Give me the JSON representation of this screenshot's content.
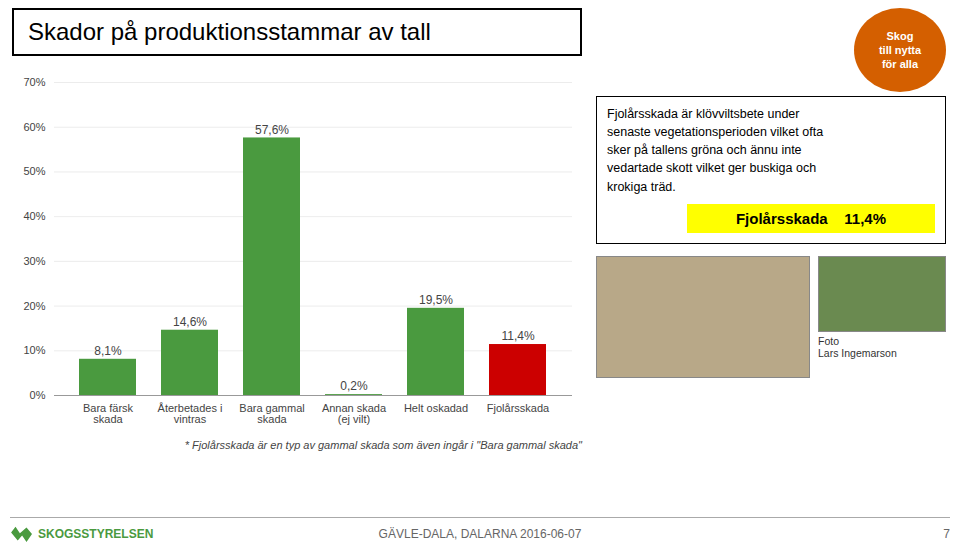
{
  "chart_data": {
    "type": "bar",
    "title": "Skador på produktionsstammar av tall",
    "categories": [
      "Bara färsk\nskada",
      "Återbetades i\nvintras",
      "Bara gammal\nskada",
      "Annan skada\n(ej vilt)",
      "Helt oskadad",
      "Fjolårsskada"
    ],
    "values": [
      8.1,
      14.6,
      57.6,
      0.2,
      19.5,
      11.4
    ],
    "value_labels": [
      "8,1%",
      "14,6%",
      "57,6%",
      "0,2%",
      "19,5%",
      "11,4%"
    ],
    "colors": [
      "#4a9a3f",
      "#4a9a3f",
      "#4a9a3f",
      "#4a9a3f",
      "#4a9a3f",
      "#cc0000"
    ],
    "data_labels": true,
    "ylim": [
      0,
      70
    ],
    "yticks": [
      {
        "value": 0,
        "label": "0%"
      },
      {
        "value": 10,
        "label": "10%"
      },
      {
        "value": 20,
        "label": "20%"
      },
      {
        "value": 30,
        "label": "30%"
      },
      {
        "value": 40,
        "label": "40%"
      },
      {
        "value": 50,
        "label": "50%"
      },
      {
        "value": 60,
        "label": "60%"
      },
      {
        "value": 70,
        "label": "70%"
      }
    ],
    "grid": true,
    "annotations": [
      "Fjolårsskada är klövviltsbete under\nsenaste vegetationsperioden vilket ofta\nsker på tallens gröna och ännu inte\nvedartade skott vilket ger buskiga och\nkrokiga träd.",
      "Fjolårsskada    11,4%",
      "Skog\ntill nytta\nför alla",
      "Foto\nLars Ingemarson",
      "* Fjolårsskada är en typ av gammal skada som även ingår i \"Bara gammal skada\"",
      "SKOGSSTYRELSEN",
      "GÄVLE-DALA, DALARNA  2016-06-07",
      "7"
    ]
  }
}
